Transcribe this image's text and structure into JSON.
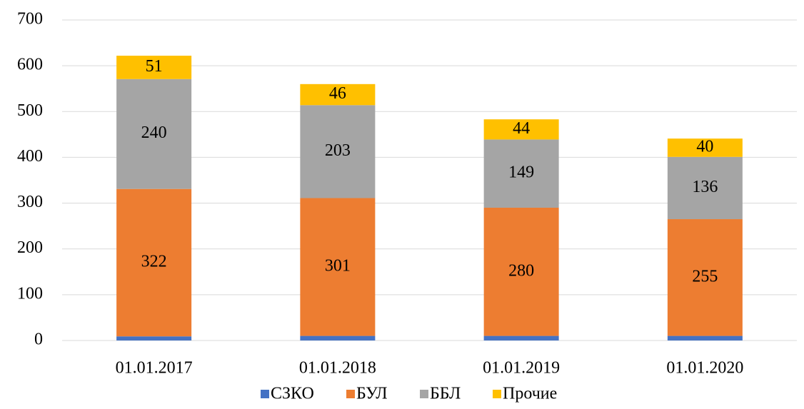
{
  "chart_data": {
    "type": "stacked_bar",
    "categories": [
      "01.01.2017",
      "01.01.2018",
      "01.01.2019",
      "01.01.2020"
    ],
    "series": [
      {
        "name": "СЗКО",
        "color": "#4472c4",
        "values": [
          9,
          10,
          10,
          10
        ]
      },
      {
        "name": "БУЛ",
        "color": "#ed7d31",
        "values": [
          322,
          301,
          280,
          255
        ]
      },
      {
        "name": "ББЛ",
        "color": "#a5a5a5",
        "values": [
          240,
          203,
          149,
          136
        ]
      },
      {
        "name": "Прочие",
        "color": "#ffc000",
        "values": [
          51,
          46,
          44,
          40
        ]
      }
    ],
    "ylim": [
      0,
      700
    ],
    "yticks": [
      0,
      100,
      200,
      300,
      400,
      500,
      600,
      700
    ],
    "grid": true,
    "legend": "bottom"
  }
}
